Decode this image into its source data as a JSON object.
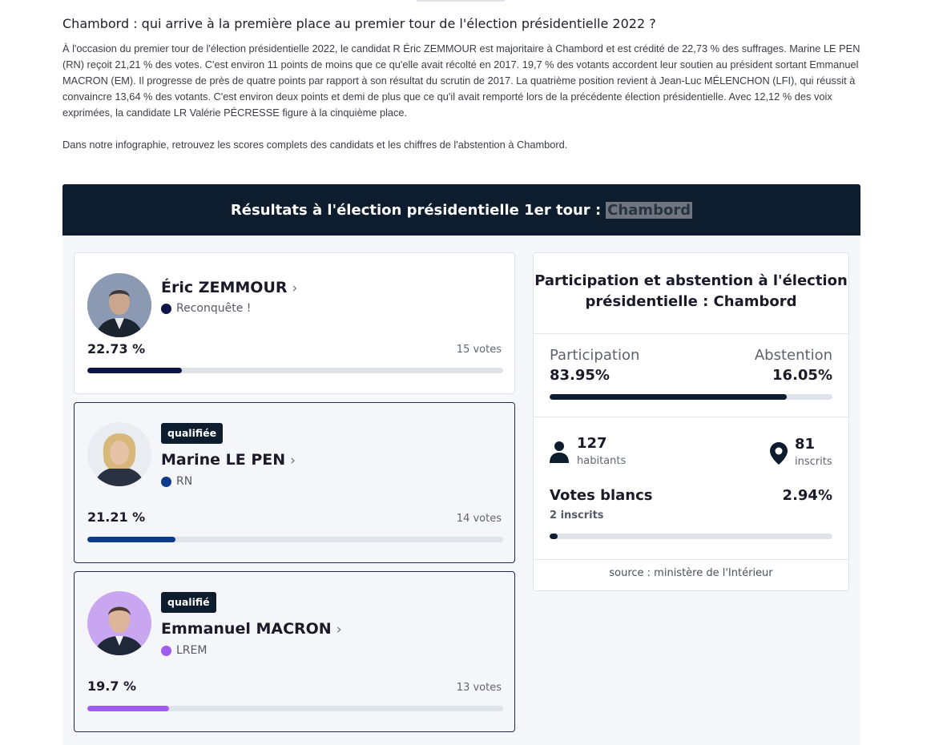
{
  "article": {
    "title": "Chambord : qui arrive à la première place au premier tour de l'élection présidentielle 2022 ?",
    "paragraph1": "À l'occasion du premier tour de l'élection présidentielle 2022, le candidat R Éric ZEMMOUR est majoritaire à Chambord et est crédité de 22,73 % des suffrages. Marine LE PEN (RN) reçoit 21,21 % des votes. C'est environ 11 points de moins que ce qu'elle avait récolté en 2017. 19,7 % des votants accordent leur soutien au président sortant Emmanuel MACRON (EM). Il progresse de près de quatre points par rapport à son résultat du scrutin de 2017. La quatrième position revient à Jean-Luc MÉLENCHON (LFI), qui réussit à convaincre 13,64 % des votants. C'est environ deux points et demi de plus que ce qu'il avait remporté lors de la précédente élection présidentielle. Avec 12,12 % des voix exprimées, la candidate LR Valérie PÉCRESSE figure à la cinquième place.",
    "paragraph2": "Dans notre infographie, retrouvez les scores complets des candidats et les chiffres de l'abstention à Chambord."
  },
  "widget": {
    "header_text": "Résultats à l'élection présidentielle 1er tour :",
    "commune": "Chambord"
  },
  "candidates": [
    {
      "name": "Éric ZEMMOUR",
      "chevron": "›",
      "party": "Reconquête !",
      "party_color": "#0d1548",
      "pct_label": "22.73 %",
      "share": 0.2273,
      "votes": "15 votes",
      "qualified": false,
      "badge": ""
    },
    {
      "name": "Marine LE PEN",
      "chevron": "›",
      "party": "RN",
      "party_color": "#0d3b8c",
      "pct_label": "21.21 %",
      "share": 0.2121,
      "votes": "14 votes",
      "qualified": true,
      "badge": "qualifiée"
    },
    {
      "name": "Emmanuel MACRON",
      "chevron": "›",
      "party": "LREM",
      "party_color": "#a05cf0",
      "pct_label": "19.7 %",
      "share": 0.197,
      "votes": "13 votes",
      "qualified": true,
      "badge": "qualifié"
    }
  ],
  "participation": {
    "title": "Participation et abstention à l'élection présidentielle : Chambord",
    "participation_label": "Participation",
    "participation_value": "83.95%",
    "participation_share": 0.8395,
    "abstention_label": "Abstention",
    "abstention_value": "16.05%",
    "habitants_num": "127",
    "habitants_label": "habitants",
    "inscrits_num": "81",
    "inscrits_label": "inscrits",
    "blank_title": "Votes blancs",
    "blank_pct": "2.94%",
    "blank_share": 0.0294,
    "blank_sub": "2 inscrits",
    "source": "source : ministère de l'Intérieur",
    "icons": [
      "person-icon",
      "location-pin-icon"
    ]
  }
}
